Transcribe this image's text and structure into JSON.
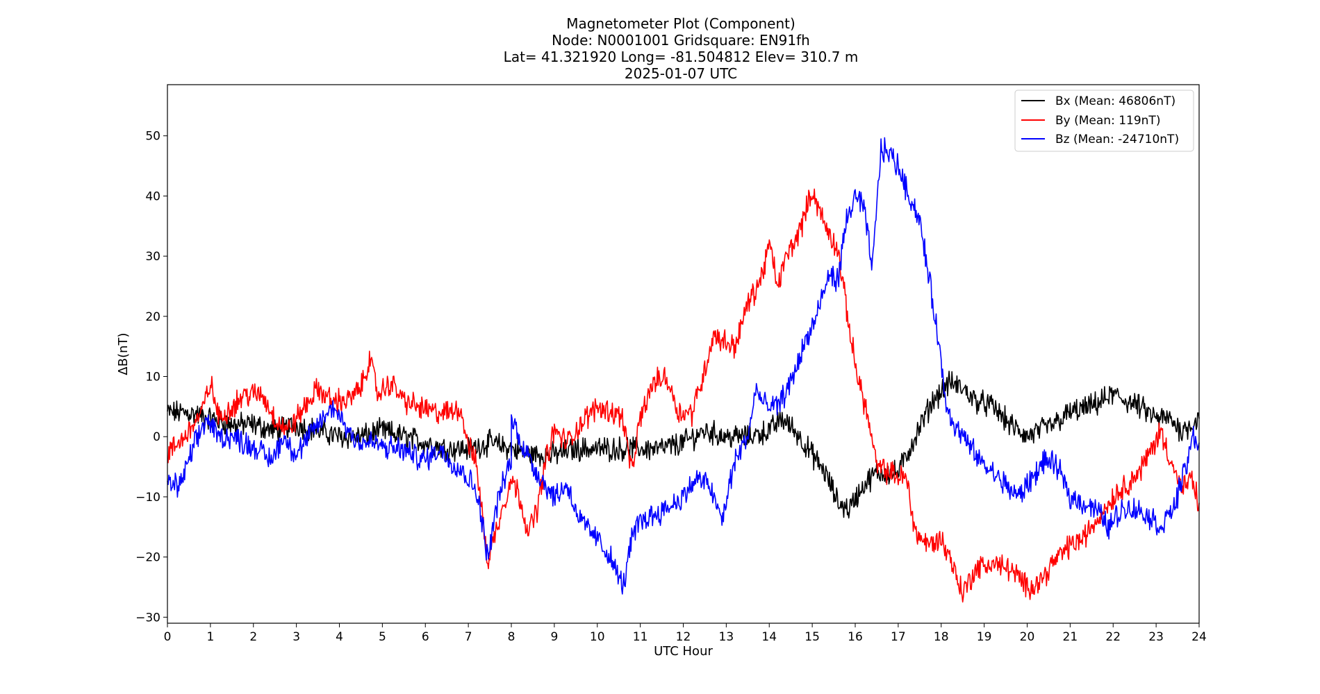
{
  "chart_data": {
    "type": "line",
    "title_lines": [
      "Magnetometer Plot (Component)",
      "Node:  N0001001     Gridsquare:  EN91fh",
      "Lat= 41.321920    Long= -81.504812    Elev= 310.7 m",
      "2025-01-07  UTC"
    ],
    "xlabel": "UTC Hour",
    "ylabel": "ΔB(nT)",
    "xlim": [
      0,
      24
    ],
    "ylim": [
      -31,
      58.5
    ],
    "x_ticks": [
      0,
      1,
      2,
      3,
      4,
      5,
      6,
      7,
      8,
      9,
      10,
      11,
      12,
      13,
      14,
      15,
      16,
      17,
      18,
      19,
      20,
      21,
      22,
      23,
      24
    ],
    "y_ticks": [
      -30,
      -20,
      -10,
      0,
      10,
      20,
      30,
      40,
      50
    ],
    "grid": false,
    "legend_position": "top-right",
    "series": [
      {
        "name": "Bx (Mean: 46806nT)",
        "color": "#000000",
        "points": [
          [
            0,
            4
          ],
          [
            0.5,
            4
          ],
          [
            1,
            3
          ],
          [
            1.5,
            2
          ],
          [
            2,
            2
          ],
          [
            2.5,
            1
          ],
          [
            3,
            2
          ],
          [
            3.5,
            1
          ],
          [
            4,
            0
          ],
          [
            4.5,
            0
          ],
          [
            5,
            1
          ],
          [
            5.5,
            0
          ],
          [
            6,
            -1
          ],
          [
            6.5,
            -2
          ],
          [
            7,
            -2
          ],
          [
            7.5,
            -1
          ],
          [
            8,
            -2
          ],
          [
            8.5,
            -3
          ],
          [
            9,
            -3
          ],
          [
            9.5,
            -2
          ],
          [
            10,
            -2
          ],
          [
            10.5,
            -2
          ],
          [
            11,
            -2
          ],
          [
            11.5,
            -2
          ],
          [
            12,
            -1
          ],
          [
            12.5,
            1
          ],
          [
            13,
            0
          ],
          [
            13.5,
            0
          ],
          [
            14,
            1
          ],
          [
            14.3,
            3
          ],
          [
            14.6,
            1
          ],
          [
            15,
            -3
          ],
          [
            15.3,
            -6
          ],
          [
            15.6,
            -11
          ],
          [
            15.85,
            -12
          ],
          [
            16.2,
            -8
          ],
          [
            16.5,
            -6
          ],
          [
            17,
            -6
          ],
          [
            17.4,
            0
          ],
          [
            17.8,
            6
          ],
          [
            18.2,
            9
          ],
          [
            18.5,
            8
          ],
          [
            18.8,
            6
          ],
          [
            19.2,
            5
          ],
          [
            19.6,
            2
          ],
          [
            20,
            0
          ],
          [
            20.3,
            1
          ],
          [
            20.6,
            2
          ],
          [
            21,
            4
          ],
          [
            21.5,
            5
          ],
          [
            22,
            7
          ],
          [
            22.3,
            6
          ],
          [
            22.6,
            5
          ],
          [
            23,
            3
          ],
          [
            23.3,
            3
          ],
          [
            23.6,
            1
          ],
          [
            24,
            3
          ]
        ]
      },
      {
        "name": "By (Mean: 119nT)",
        "color": "#ff0000",
        "points": [
          [
            0,
            -3
          ],
          [
            0.4,
            0
          ],
          [
            0.8,
            4
          ],
          [
            1,
            9
          ],
          [
            1.2,
            3
          ],
          [
            1.5,
            5
          ],
          [
            1.8,
            7
          ],
          [
            2.2,
            7
          ],
          [
            2.5,
            3
          ],
          [
            2.8,
            1
          ],
          [
            3.2,
            5
          ],
          [
            3.5,
            8
          ],
          [
            3.8,
            6
          ],
          [
            4.2,
            6
          ],
          [
            4.5,
            8
          ],
          [
            4.7,
            13
          ],
          [
            4.9,
            7
          ],
          [
            5.2,
            9
          ],
          [
            5.5,
            6
          ],
          [
            5.8,
            5
          ],
          [
            6.2,
            4
          ],
          [
            6.6,
            4
          ],
          [
            6.8,
            5
          ],
          [
            7,
            -1
          ],
          [
            7.2,
            -5
          ],
          [
            7.45,
            -21
          ],
          [
            7.7,
            -14
          ],
          [
            8,
            -7
          ],
          [
            8.2,
            -10
          ],
          [
            8.4,
            -16
          ],
          [
            8.6,
            -12
          ],
          [
            8.8,
            -4
          ],
          [
            9,
            1
          ],
          [
            9.3,
            -1
          ],
          [
            9.6,
            2
          ],
          [
            10,
            5
          ],
          [
            10.4,
            4
          ],
          [
            10.6,
            3
          ],
          [
            10.8,
            -6
          ],
          [
            11,
            3
          ],
          [
            11.3,
            9
          ],
          [
            11.6,
            10
          ],
          [
            11.9,
            4
          ],
          [
            12.2,
            4
          ],
          [
            12.5,
            11
          ],
          [
            12.7,
            17
          ],
          [
            12.9,
            16
          ],
          [
            13.2,
            15
          ],
          [
            13.5,
            22
          ],
          [
            13.8,
            26
          ],
          [
            14,
            32
          ],
          [
            14.2,
            25
          ],
          [
            14.4,
            30
          ],
          [
            14.7,
            34
          ],
          [
            15,
            41
          ],
          [
            15.3,
            35
          ],
          [
            15.6,
            31
          ],
          [
            15.8,
            21
          ],
          [
            16,
            12
          ],
          [
            16.3,
            3
          ],
          [
            16.5,
            -5
          ],
          [
            16.8,
            -6
          ],
          [
            17.2,
            -7
          ],
          [
            17.4,
            -16
          ],
          [
            17.7,
            -18
          ],
          [
            18,
            -17
          ],
          [
            18.2,
            -20
          ],
          [
            18.5,
            -26
          ],
          [
            18.8,
            -22
          ],
          [
            19.2,
            -21
          ],
          [
            19.6,
            -22
          ],
          [
            20,
            -25
          ],
          [
            20.3,
            -24
          ],
          [
            20.6,
            -21
          ],
          [
            21,
            -18
          ],
          [
            21.3,
            -17
          ],
          [
            21.6,
            -14
          ],
          [
            22,
            -10
          ],
          [
            22.3,
            -8
          ],
          [
            22.6,
            -6
          ],
          [
            22.9,
            -2
          ],
          [
            23.1,
            1
          ],
          [
            23.3,
            -3
          ],
          [
            23.6,
            -9
          ],
          [
            23.8,
            -7
          ],
          [
            24,
            -11
          ]
        ]
      },
      {
        "name": "Bz (Mean: -24710nT)",
        "color": "#0000ff",
        "points": [
          [
            0,
            -8
          ],
          [
            0.3,
            -8
          ],
          [
            0.6,
            -2
          ],
          [
            0.9,
            3
          ],
          [
            1.2,
            0
          ],
          [
            1.5,
            0
          ],
          [
            1.8,
            -1
          ],
          [
            2.1,
            -2
          ],
          [
            2.4,
            -4
          ],
          [
            2.7,
            0
          ],
          [
            3,
            -3
          ],
          [
            3.3,
            0
          ],
          [
            3.6,
            3
          ],
          [
            3.9,
            5
          ],
          [
            4.2,
            1
          ],
          [
            4.5,
            -1
          ],
          [
            4.8,
            -1
          ],
          [
            5.1,
            -2
          ],
          [
            5.4,
            -2
          ],
          [
            5.7,
            -3
          ],
          [
            6,
            -4
          ],
          [
            6.3,
            -2
          ],
          [
            6.6,
            -4
          ],
          [
            6.9,
            -6
          ],
          [
            7.2,
            -9
          ],
          [
            7.45,
            -20
          ],
          [
            7.7,
            -10
          ],
          [
            8,
            -4
          ],
          [
            8,
            3
          ],
          [
            8.3,
            -2
          ],
          [
            8.6,
            -6
          ],
          [
            9,
            -10
          ],
          [
            9.3,
            -8
          ],
          [
            9.6,
            -14
          ],
          [
            10,
            -17
          ],
          [
            10.3,
            -20
          ],
          [
            10.6,
            -25
          ],
          [
            10.8,
            -17
          ],
          [
            11,
            -14
          ],
          [
            11.3,
            -13
          ],
          [
            11.6,
            -12
          ],
          [
            12,
            -10
          ],
          [
            12.3,
            -7
          ],
          [
            12.6,
            -8
          ],
          [
            12.9,
            -14
          ],
          [
            13.2,
            -4
          ],
          [
            13.5,
            0
          ],
          [
            13.7,
            8
          ],
          [
            13.9,
            5
          ],
          [
            14.2,
            5
          ],
          [
            14.5,
            9
          ],
          [
            14.8,
            15
          ],
          [
            15.1,
            20
          ],
          [
            15.4,
            27
          ],
          [
            15.6,
            26
          ],
          [
            15.8,
            36
          ],
          [
            16,
            40
          ],
          [
            16.2,
            38
          ],
          [
            16.4,
            28
          ],
          [
            16.6,
            48
          ],
          [
            16.8,
            47
          ],
          [
            17,
            45
          ],
          [
            17.2,
            41
          ],
          [
            17.5,
            36
          ],
          [
            17.7,
            27
          ],
          [
            17.9,
            18
          ],
          [
            18.1,
            6
          ],
          [
            18.3,
            2
          ],
          [
            18.6,
            -1
          ],
          [
            18.9,
            -4
          ],
          [
            19.2,
            -6
          ],
          [
            19.5,
            -8
          ],
          [
            19.8,
            -10
          ],
          [
            20.1,
            -7
          ],
          [
            20.4,
            -4
          ],
          [
            20.7,
            -5
          ],
          [
            21,
            -10
          ],
          [
            21.3,
            -11
          ],
          [
            21.6,
            -12
          ],
          [
            21.9,
            -15
          ],
          [
            22.2,
            -12
          ],
          [
            22.5,
            -12
          ],
          [
            22.8,
            -13
          ],
          [
            23.1,
            -15
          ],
          [
            23.4,
            -12
          ],
          [
            23.7,
            -5
          ],
          [
            23.85,
            0
          ],
          [
            24,
            -1
          ]
        ]
      }
    ]
  }
}
